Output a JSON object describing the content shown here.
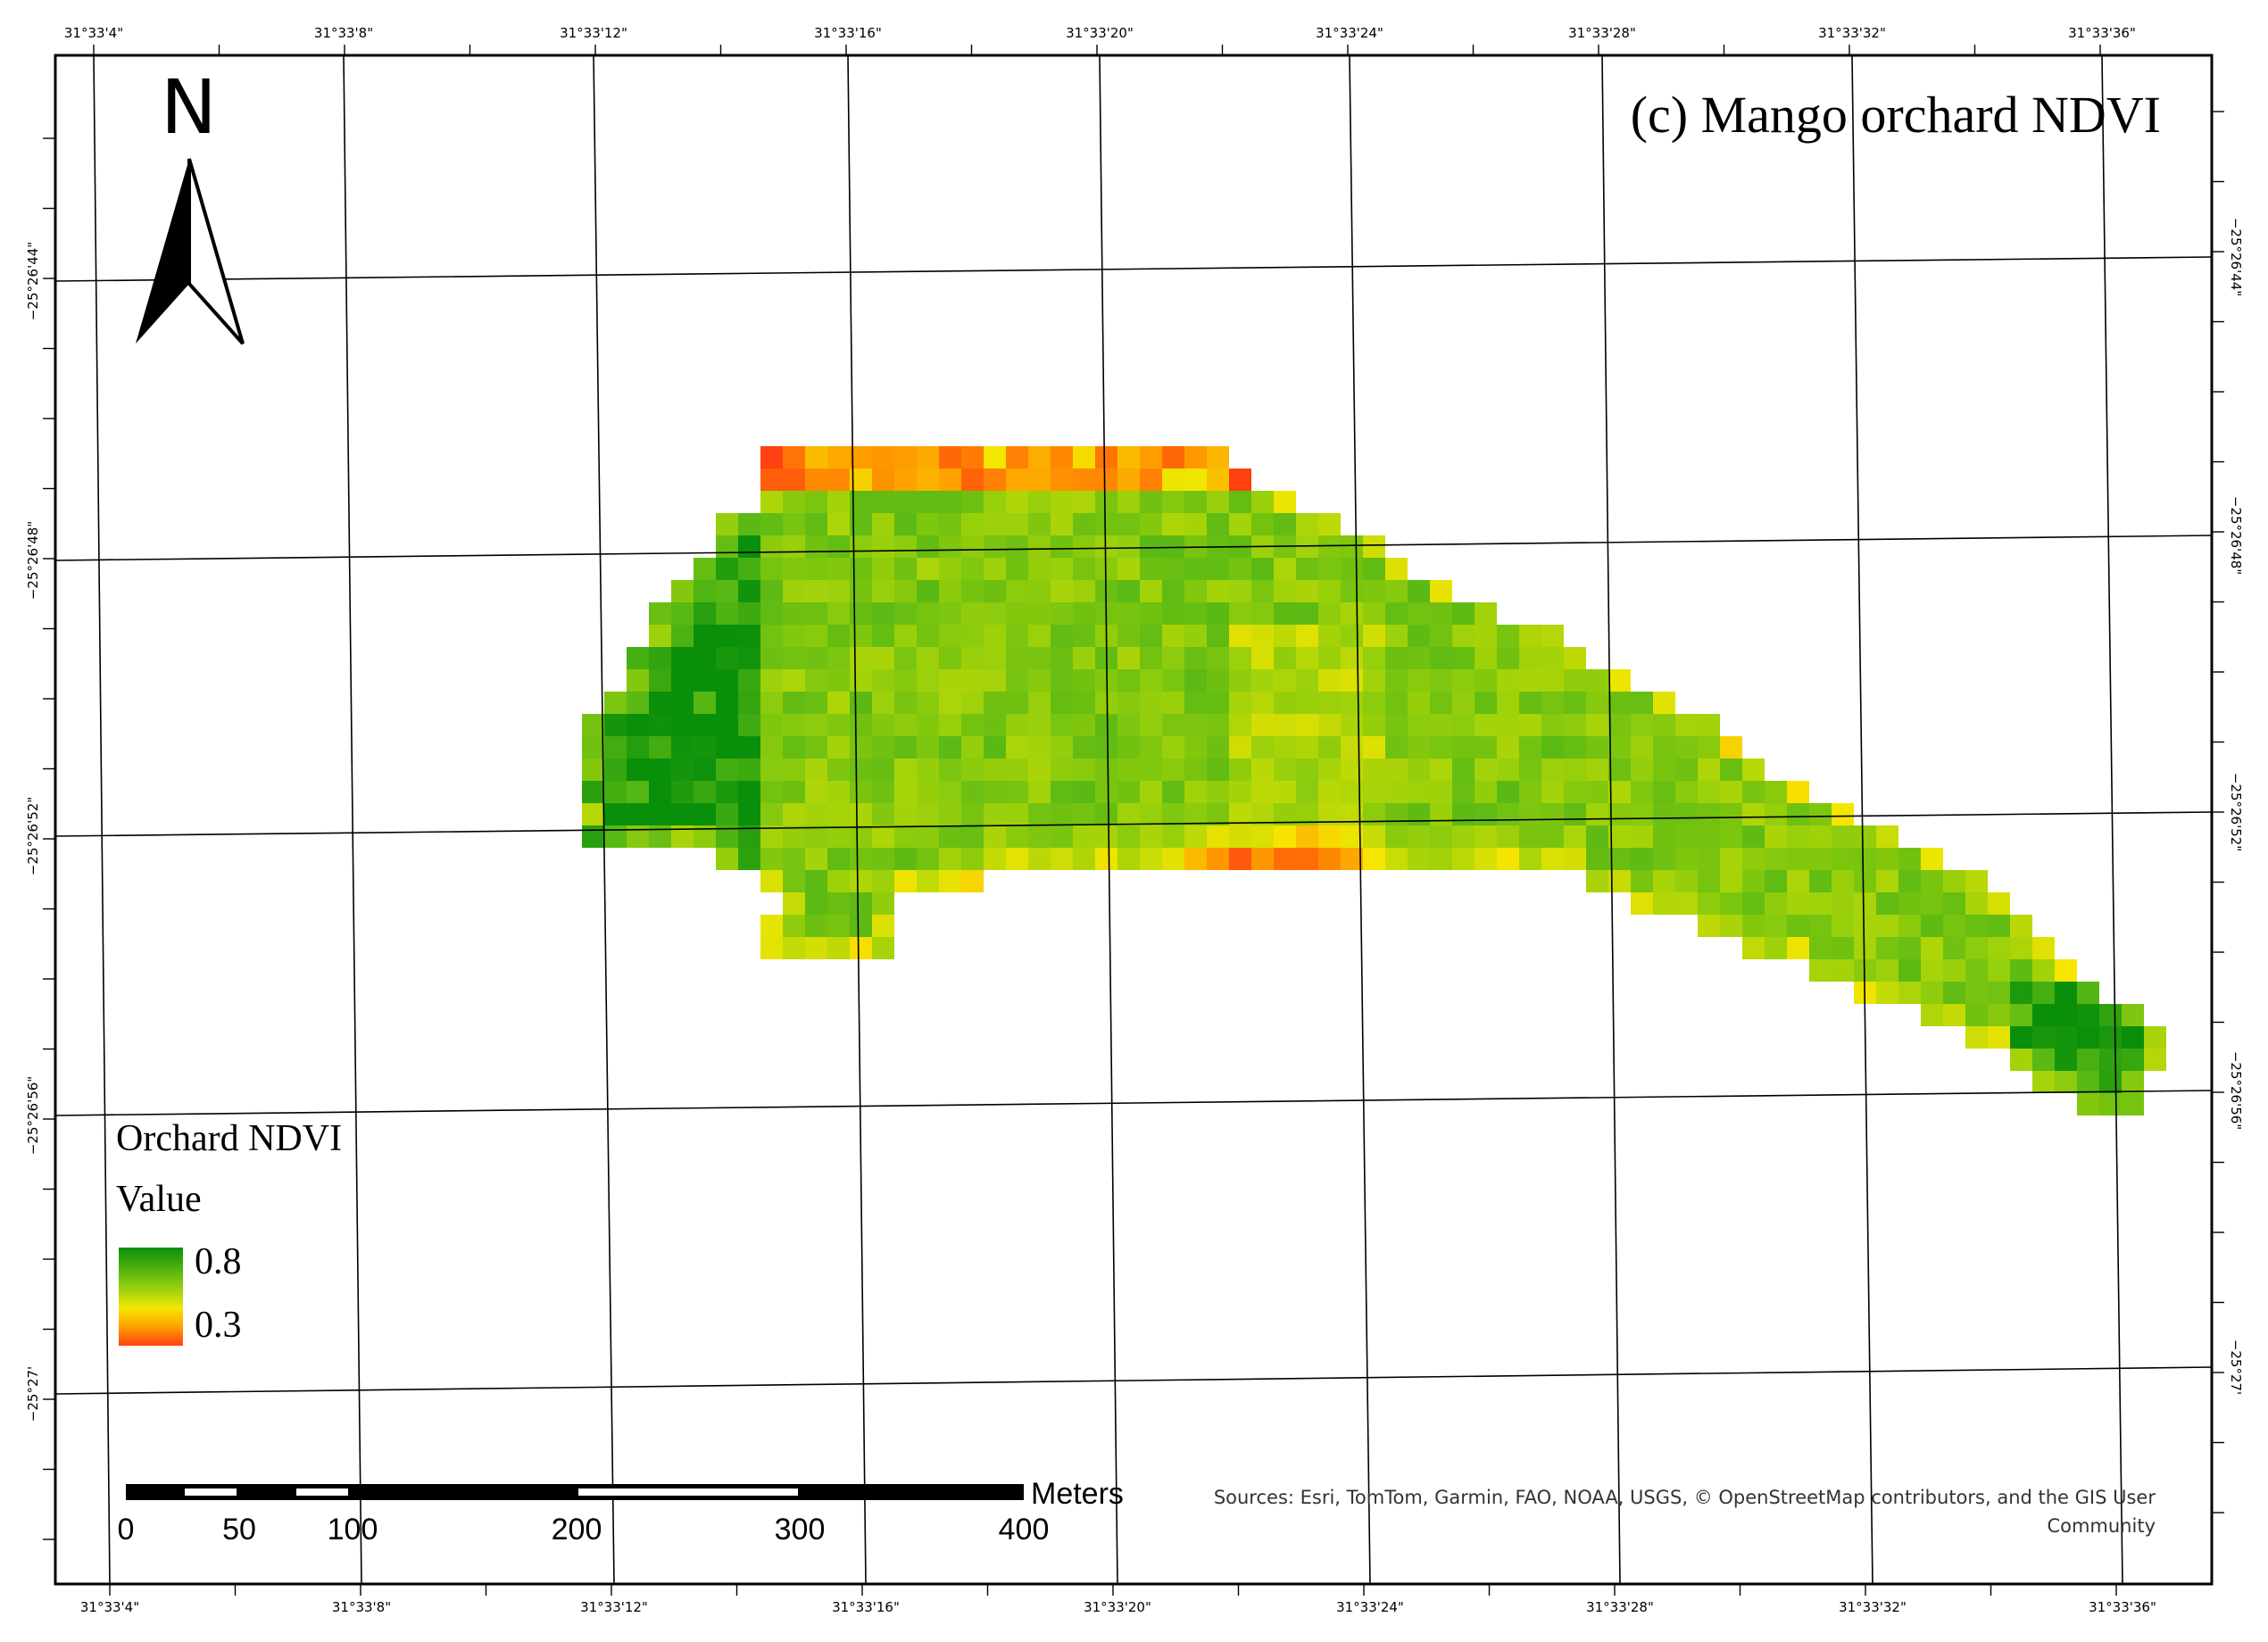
{
  "map": {
    "title": "(c) Mango orchard NDVI",
    "north_label": "N",
    "legend": {
      "title": "Orchard NDVI",
      "subtitle": "Value",
      "high_label": "0.8",
      "low_label": "0.3",
      "colors": {
        "high": "#0a8f0a",
        "mid": "#8fcf10",
        "yellow": "#f5e600",
        "low": "#ff4010"
      }
    },
    "scale_bar": {
      "unit": "Meters",
      "labels": [
        "0",
        "50",
        "100",
        "200",
        "300",
        "400"
      ]
    },
    "sources": "Sources: Esri, TomTom, Garmin, FAO, NOAA, USGS, © OpenStreetMap contributors, and the GIS User Community",
    "graticule": {
      "longitude_labels": [
        "31°33'4\"",
        "31°33'8\"",
        "31°33'12\"",
        "31°33'16\"",
        "31°33'20\"",
        "31°33'24\"",
        "31°33'28\"",
        "31°33'32\"",
        "31°33'36\""
      ],
      "latitude_labels": [
        "−25°26'44\"",
        "−25°26'48\"",
        "−25°26'52\"",
        "−25°26'56\"",
        "−25°27'"
      ]
    }
  }
}
